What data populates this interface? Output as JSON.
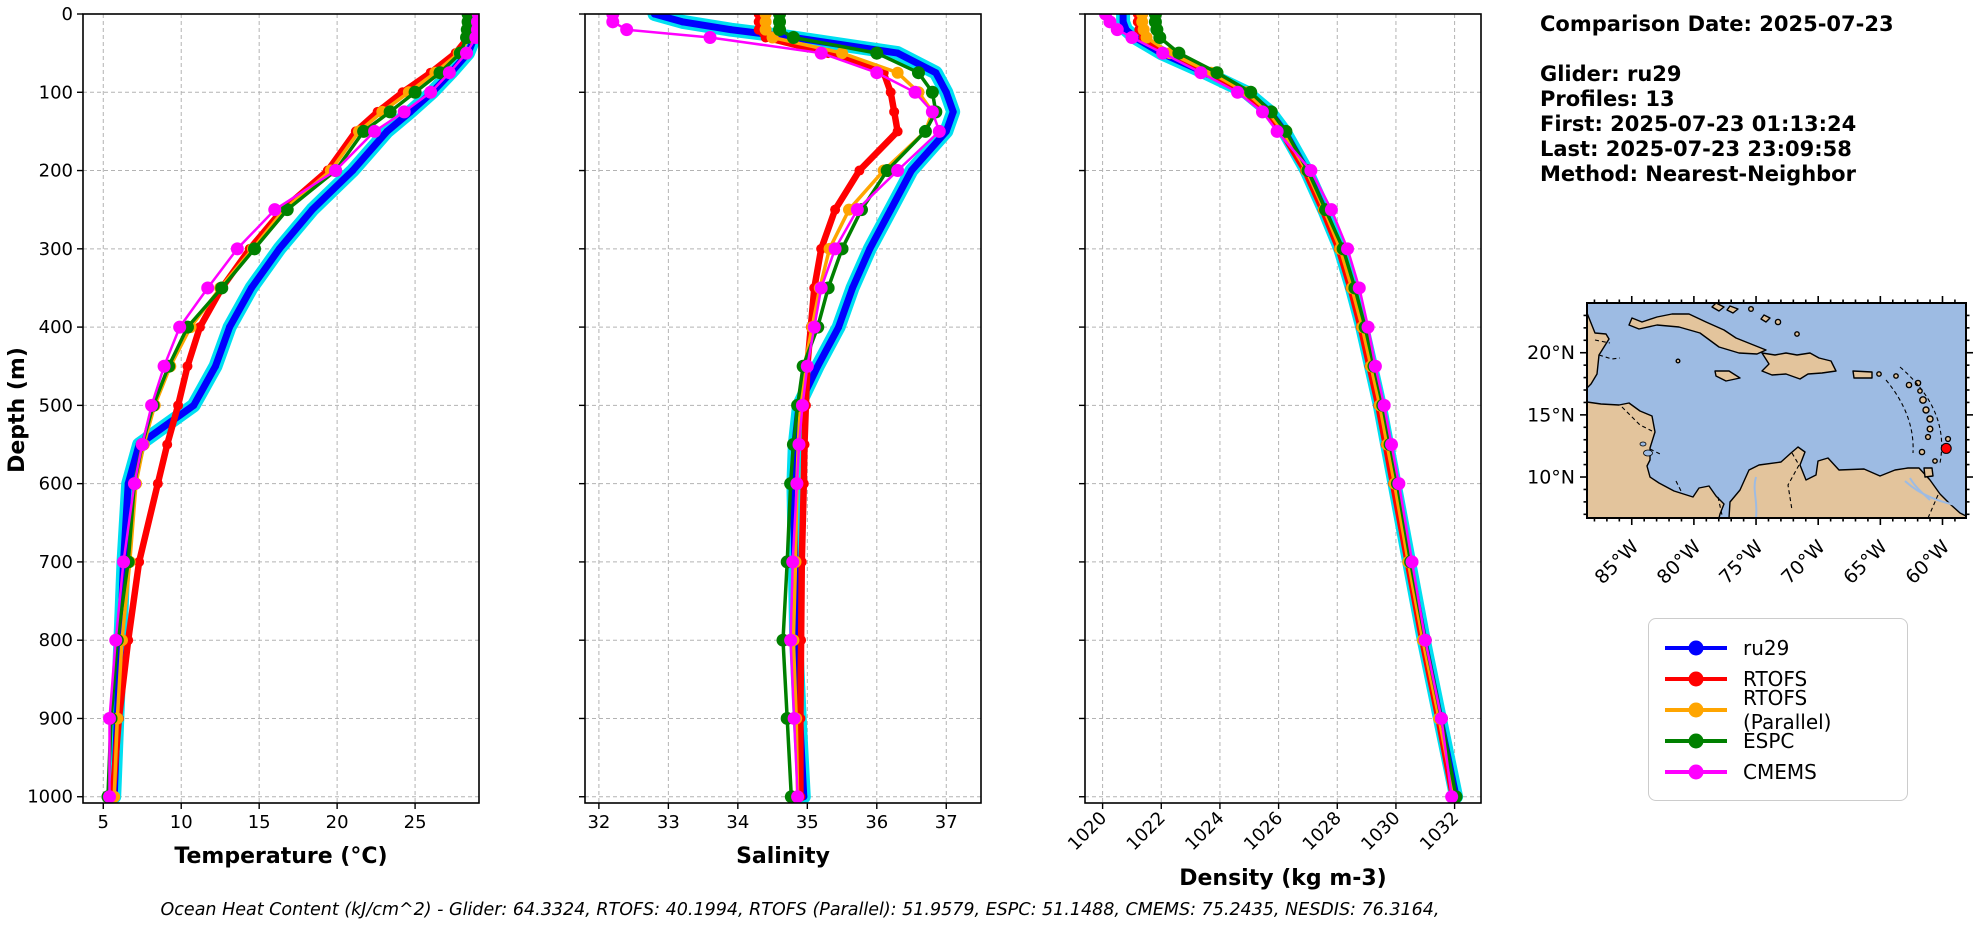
{
  "info_panel": {
    "lines": [
      "Comparison Date: 2025-07-23",
      "",
      "Glider: ru29",
      "Profiles: 13",
      "First: 2025-07-23 01:13:24",
      "Last: 2025-07-23 23:09:58",
      "Method: Nearest-Neighbor"
    ]
  },
  "footer": {
    "text": "Ocean Heat Content (kJ/cm^2) - Glider: 64.3324,  RTOFS: 40.1994,  RTOFS (Parallel): 51.9579,  ESPC: 51.1488,  CMEMS: 75.2435,  NESDIS: 76.3164,"
  },
  "legend": {
    "entries": [
      {
        "label": "ru29",
        "color": "#0000ff"
      },
      {
        "label": "RTOFS",
        "color": "#ff0000"
      },
      {
        "label": "RTOFS (Parallel)",
        "color": "#ffa500"
      },
      {
        "label": "ESPC",
        "color": "#008000"
      },
      {
        "label": "CMEMS",
        "color": "#ff00ff"
      }
    ]
  },
  "map": {
    "ocean_color": "#9dbbe3",
    "land_color": "#e3c49c",
    "river_color": "#9dbbe3",
    "lon_ticks": [
      {
        "value": 85,
        "label": "85°W"
      },
      {
        "value": 80,
        "label": "80°W"
      },
      {
        "value": 75,
        "label": "75°W"
      },
      {
        "value": 70,
        "label": "70°W"
      },
      {
        "value": 65,
        "label": "65°W"
      },
      {
        "value": 60,
        "label": "60°W"
      }
    ],
    "lat_ticks": [
      {
        "value": 20,
        "label": "20°N"
      },
      {
        "value": 15,
        "label": "15°N"
      },
      {
        "value": 10,
        "label": "10°N"
      }
    ],
    "glider_marker": {
      "lon_w": 59.7,
      "lat": 12.3,
      "color": "#ff0000"
    }
  },
  "chart_data": {
    "type": "line",
    "ylabel": "Depth (m)",
    "ylim": [
      0,
      1008
    ],
    "y_ticks": [
      0,
      100,
      200,
      300,
      400,
      500,
      600,
      700,
      800,
      900,
      1000
    ],
    "grid": true,
    "legend_position": "lower-right-outside",
    "depths": [
      0,
      10,
      20,
      30,
      50,
      75,
      100,
      125,
      150,
      200,
      250,
      300,
      350,
      400,
      450,
      500,
      550,
      600,
      700,
      800,
      900,
      1000
    ],
    "series_names": [
      "ru29",
      "RTOFS",
      "RTOFS (Parallel)",
      "ESPC",
      "CMEMS"
    ],
    "styles": {
      "ru29": {
        "color": "#0000ff",
        "lw": 7,
        "r": 3.5,
        "envelope": "#00dff0",
        "envelope_lw": 14
      },
      "RTOFS": {
        "color": "#ff0000",
        "lw": 6.5,
        "r": 5
      },
      "RTOFS (Parallel)": {
        "color": "#ffa500",
        "lw": 3.5,
        "r": 6
      },
      "ESPC": {
        "color": "#008000",
        "lw": 3.5,
        "r": 6.5
      },
      "CMEMS": {
        "color": "#ff00ff",
        "lw": 2.5,
        "r": 6.5
      }
    },
    "panels": [
      {
        "key": "temperature",
        "xlabel": "Temperature (°C)",
        "xlim": [
          3.7,
          29.1
        ],
        "x_ticks": [
          5,
          10,
          15,
          20,
          25
        ],
        "rotate_x_labels": false,
        "series": {
          "ru29": [
            28.9,
            28.9,
            28.85,
            28.8,
            28.4,
            27.3,
            26.1,
            24.7,
            23.2,
            21.0,
            18.4,
            16.3,
            14.5,
            13.1,
            12.2,
            10.8,
            7.3,
            6.6,
            6.3,
            6.1,
            5.9,
            5.7
          ],
          "RTOFS": [
            28.6,
            28.55,
            28.5,
            28.4,
            27.6,
            26.0,
            24.2,
            22.6,
            21.2,
            19.4,
            16.5,
            14.4,
            12.6,
            11.2,
            10.4,
            9.8,
            9.1,
            8.5,
            7.3,
            6.6,
            6.0,
            5.6
          ],
          "RTOFS (Parallel)": [
            28.7,
            28.7,
            28.6,
            28.5,
            27.8,
            26.3,
            24.6,
            22.9,
            21.4,
            19.6,
            16.6,
            14.6,
            12.5,
            10.6,
            9.3,
            8.3,
            7.6,
            7.1,
            6.7,
            6.2,
            5.9,
            5.7
          ],
          "ESPC": [
            28.4,
            28.4,
            28.35,
            28.3,
            27.9,
            26.6,
            25.0,
            23.4,
            21.7,
            19.9,
            16.8,
            14.7,
            12.6,
            10.4,
            9.2,
            8.2,
            7.5,
            7.0,
            6.6,
            5.9,
            5.5,
            5.3
          ],
          "CMEMS": [
            29.05,
            29.0,
            29.0,
            28.9,
            28.3,
            27.2,
            26.0,
            24.3,
            22.4,
            19.9,
            16.0,
            13.6,
            11.7,
            9.9,
            8.9,
            8.1,
            7.5,
            7.0,
            6.3,
            5.8,
            5.4,
            5.4
          ]
        }
      },
      {
        "key": "salinity",
        "xlabel": "Salinity",
        "xlim": [
          31.8,
          37.5
        ],
        "x_ticks": [
          32,
          33,
          34,
          35,
          36,
          37
        ],
        "rotate_x_labels": false,
        "series": {
          "ru29": [
            32.8,
            33.2,
            33.9,
            34.8,
            36.3,
            36.85,
            37.0,
            37.1,
            37.0,
            36.5,
            36.2,
            35.9,
            35.65,
            35.45,
            35.15,
            34.88,
            34.82,
            34.8,
            34.82,
            34.84,
            34.89,
            34.95
          ],
          "RTOFS": [
            34.3,
            34.3,
            34.3,
            34.4,
            35.3,
            36.1,
            36.2,
            36.25,
            36.3,
            35.75,
            35.4,
            35.2,
            35.1,
            35.05,
            35.0,
            34.98,
            34.96,
            34.95,
            34.92,
            34.91,
            34.9,
            34.9
          ],
          "RTOFS (Parallel)": [
            34.4,
            34.4,
            34.4,
            34.5,
            35.5,
            36.3,
            36.6,
            36.8,
            36.7,
            36.1,
            35.6,
            35.32,
            35.18,
            35.07,
            34.96,
            34.9,
            34.87,
            34.85,
            34.83,
            34.8,
            34.84,
            34.86
          ],
          "ESPC": [
            34.6,
            34.6,
            34.6,
            34.8,
            36.0,
            36.6,
            36.8,
            36.85,
            36.7,
            36.15,
            35.78,
            35.5,
            35.3,
            35.15,
            34.94,
            34.86,
            34.8,
            34.76,
            34.71,
            34.65,
            34.71,
            34.77
          ],
          "CMEMS": [
            32.2,
            32.2,
            32.4,
            33.6,
            35.2,
            36.0,
            36.55,
            36.8,
            36.9,
            36.3,
            35.72,
            35.4,
            35.2,
            35.1,
            35.0,
            34.93,
            34.88,
            34.85,
            34.79,
            34.76,
            34.81,
            34.86
          ]
        }
      },
      {
        "key": "density",
        "xlabel": "Density (kg m-3)",
        "xlim": [
          1019.4,
          1032.9
        ],
        "x_ticks": [
          1020,
          1022,
          1024,
          1026,
          1028,
          1030,
          1032
        ],
        "rotate_x_labels": true,
        "series": {
          "ru29": [
            1020.7,
            1020.7,
            1020.8,
            1021.1,
            1022.0,
            1023.5,
            1024.9,
            1025.7,
            1026.2,
            1026.95,
            1027.55,
            1028.1,
            1028.5,
            1028.85,
            1029.15,
            1029.45,
            1029.7,
            1029.95,
            1030.45,
            1030.95,
            1031.5,
            1032.05
          ],
          "RTOFS": [
            1021.2,
            1021.2,
            1021.25,
            1021.4,
            1022.2,
            1023.6,
            1024.85,
            1025.6,
            1026.1,
            1026.9,
            1027.5,
            1028.05,
            1028.45,
            1028.8,
            1029.1,
            1029.4,
            1029.65,
            1029.9,
            1030.4,
            1030.9,
            1031.45,
            1031.95
          ],
          "RTOFS (Parallel)": [
            1021.35,
            1021.35,
            1021.4,
            1021.5,
            1022.3,
            1023.7,
            1024.9,
            1025.65,
            1026.15,
            1026.95,
            1027.55,
            1028.1,
            1028.5,
            1028.85,
            1029.15,
            1029.45,
            1029.7,
            1029.95,
            1030.42,
            1030.92,
            1031.47,
            1031.98
          ],
          "ESPC": [
            1021.8,
            1021.8,
            1021.85,
            1021.95,
            1022.6,
            1023.9,
            1025.05,
            1025.75,
            1026.25,
            1027.0,
            1027.6,
            1028.2,
            1028.6,
            1028.95,
            1029.25,
            1029.55,
            1029.8,
            1030.05,
            1030.5,
            1031.0,
            1031.55,
            1032.05
          ],
          "CMEMS": [
            1020.1,
            1020.25,
            1020.5,
            1021.0,
            1022.05,
            1023.35,
            1024.6,
            1025.45,
            1025.95,
            1027.1,
            1027.8,
            1028.35,
            1028.75,
            1029.05,
            1029.3,
            1029.6,
            1029.85,
            1030.1,
            1030.55,
            1031.0,
            1031.55,
            1031.9
          ]
        }
      }
    ]
  }
}
